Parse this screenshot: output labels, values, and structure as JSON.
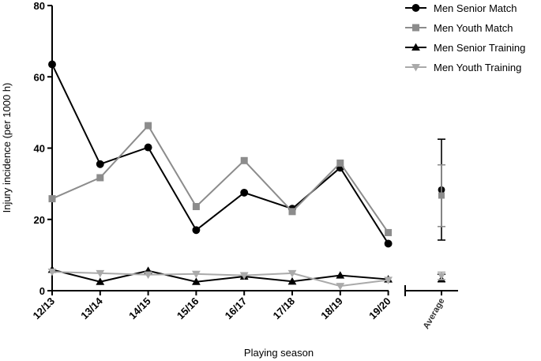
{
  "chart_data": {
    "type": "line",
    "title": "",
    "xlabel": "Playing season",
    "ylabel": "Injury incidence (per 1000 h)",
    "ylim": [
      0,
      80
    ],
    "yticks": [
      0,
      20,
      40,
      60,
      80
    ],
    "grid": false,
    "legend_position": "top-right",
    "categories": [
      "12/13",
      "13/14",
      "14/15",
      "15/16",
      "16/17",
      "17/18",
      "18/19",
      "19/20"
    ],
    "average_label": "Average",
    "series": [
      {
        "name": "Men Senior Match",
        "color": "#000000",
        "marker": "circle",
        "values": [
          63.5,
          35.5,
          40.2,
          17,
          27.5,
          23,
          34.5,
          13.2
        ],
        "average": {
          "mean": 28.3,
          "low": 14.2,
          "high": 42.5
        }
      },
      {
        "name": "Men Youth Match",
        "color": "#8c8c8c",
        "marker": "square",
        "values": [
          25.8,
          31.7,
          46.3,
          23.6,
          36.5,
          22.2,
          35.8,
          16.3
        ],
        "average": {
          "mean": 26.7,
          "low": 18,
          "high": 35.3
        }
      },
      {
        "name": "Men Senior Training",
        "color": "#000000",
        "marker": "triangle-up",
        "values": [
          5.9,
          2.5,
          5.6,
          2.5,
          4,
          2.6,
          4.3,
          3.2
        ],
        "average": {
          "mean": 3.3,
          "low": 2.5,
          "high": 4.6
        }
      },
      {
        "name": "Men Youth Training",
        "color": "#aaaaaa",
        "marker": "triangle-down",
        "values": [
          5.3,
          4.9,
          4.5,
          4.7,
          4.3,
          4.9,
          1.3,
          3
        ],
        "average": {
          "mean": 4.1,
          "low": 3.1,
          "high": 5.2
        }
      }
    ]
  }
}
